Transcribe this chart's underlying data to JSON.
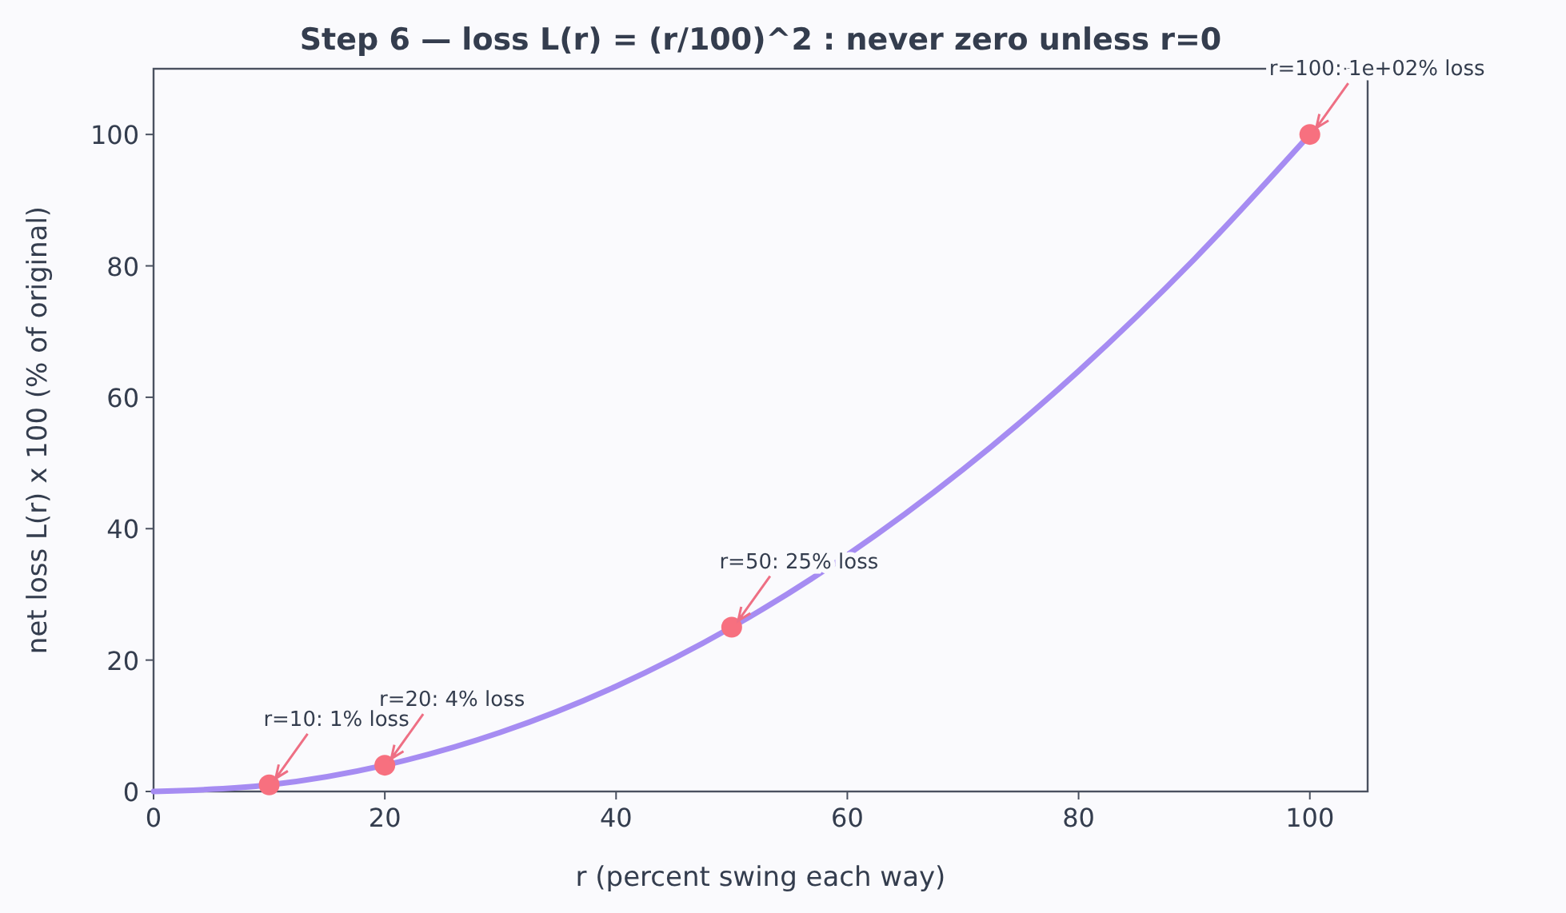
{
  "chart_data": {
    "type": "line",
    "title": "Step 6 — loss L(r) = (r/100)^2 : never zero unless r=0",
    "xlabel": "r  (percent swing each way)",
    "ylabel": "net loss  L(r) x 100  (% of original)",
    "xlim": [
      0,
      105
    ],
    "ylim": [
      0,
      110
    ],
    "xticks": [
      0,
      20,
      40,
      60,
      80,
      100
    ],
    "yticks": [
      0,
      20,
      40,
      60,
      80,
      100
    ],
    "grid": false,
    "series": [
      {
        "color": "#a68cf2",
        "marker": "none",
        "x": [
          0,
          10,
          20,
          30,
          40,
          50,
          60,
          70,
          80,
          90,
          100
        ],
        "values": [
          0,
          1,
          4,
          9,
          16,
          25,
          36,
          49,
          64,
          81,
          100
        ]
      },
      {
        "type": "scatter",
        "color": "#f7707f",
        "marker": "circle",
        "x": [
          10,
          20,
          50,
          100
        ],
        "values": [
          1,
          4,
          25,
          100
        ]
      }
    ],
    "annotations": [
      {
        "text": "r=10: 1% loss",
        "x": 10,
        "y": 1
      },
      {
        "text": "r=20: 4% loss",
        "x": 20,
        "y": 4
      },
      {
        "text": "r=50: 25% loss",
        "x": 50,
        "y": 25
      },
      {
        "text": "r=100: 1e+02% loss",
        "x": 100,
        "y": 100
      }
    ]
  }
}
